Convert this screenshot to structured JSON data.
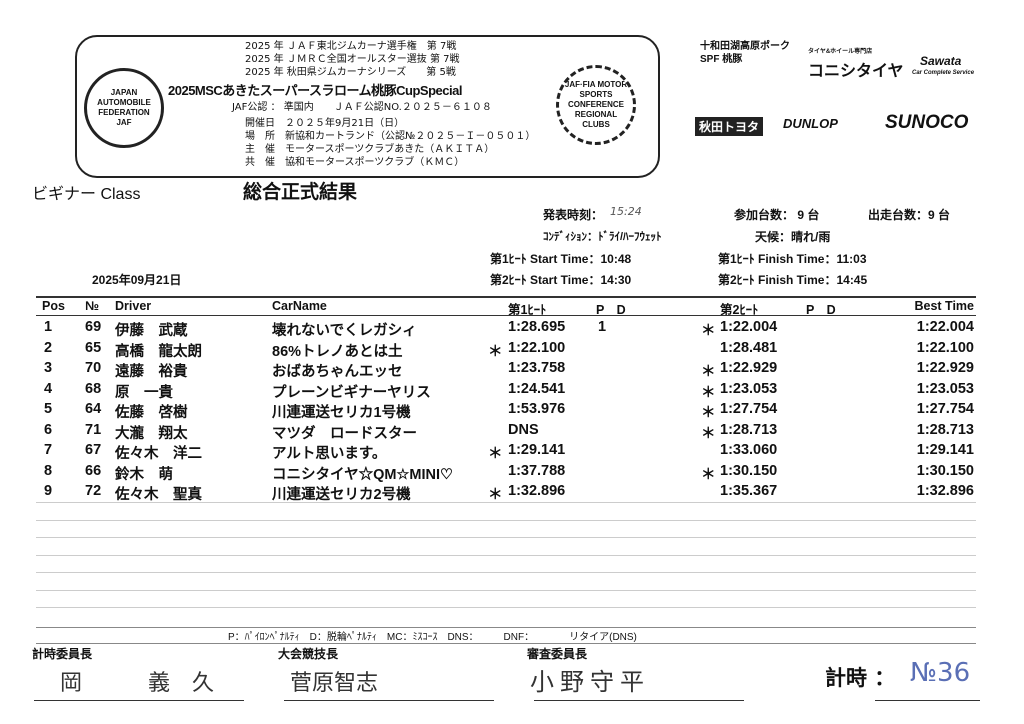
{
  "header": {
    "series": [
      "2025 年 ＪＡＦ東北ジムカーナ選手権　第 7戦",
      "2025 年 ＪＭＲＣ全国オールスター選抜 第 7戦",
      "2025 年 秋田県ジムカーナシリーズ　　第 5戦"
    ],
    "title": "2025MSCあきたスーパースラローム桃豚CupSpecial",
    "jaf": "JAF公認 ： 準国内　　ＪＡＦ公認NO.２０２５－６１０８",
    "info": [
      "開催日　２０２５年9月21日（日）",
      "場　所　新協和カートランド（公認№２０２５－Ｉ－０５０１）",
      "主　催　モータースポーツクラブあきた（ＡＫＩＴＡ）",
      "共　催　協和モータースポーツクラブ（ＫＭＣ）"
    ],
    "left_logo_text": "JAPAN AUTOMOBILE FEDERATION JAF",
    "right_logo_text": "JAF·FIA MOTOR SPORTS CONFERENCE REGIONAL CLUBS"
  },
  "sponsors": {
    "s1": "十和田湖高原ポーク SPF 桃豚",
    "s2_sub": "タイヤ&ホイール専門店",
    "s2": "コニシタイヤ",
    "s3": "Sawata",
    "s3_sub": "Car Complete Service",
    "s4": "秋田トヨタ",
    "s5": "DUNLOP",
    "s6": "SUNOCO"
  },
  "class": "ビギナー Class",
  "result_title": "総合正式結果",
  "meta": {
    "announce_label": "発表時刻：",
    "announce": "15:24",
    "entries": "参加台数： 9 台",
    "starters": "出走台数：9 台",
    "condition": "ｺﾝﾃﾞｨｼｮﾝ：ﾄﾞﾗｲ/ﾊｰﾌｳｪｯﾄ",
    "weather": "天候：晴れ/雨",
    "h1_start": "第1ﾋｰﾄ Start Time：10:48",
    "h1_finish": "第1ﾋｰﾄ Finish Time：11:03",
    "h2_start": "第2ﾋｰﾄ Start Time：14:30",
    "h2_finish": "第2ﾋｰﾄ Finish Time：14:45",
    "date": "2025年09月21日"
  },
  "columns": {
    "pos": "Pos",
    "no": "№",
    "driver": "Driver",
    "car": "CarName",
    "h1": "第1ﾋｰﾄ",
    "pd1": "P　D",
    "h2": "第2ﾋｰﾄ",
    "pd2": "P　D",
    "best": "Best Time"
  },
  "rows": [
    {
      "pos": "1",
      "no": "69",
      "driver": "伊藤　武蔵",
      "car": "壊れないでくレガシィ",
      "m1": "",
      "h1": "1:28.695",
      "pd1": "1",
      "m2": "＊",
      "h2": "1:22.004",
      "best": "1:22.004"
    },
    {
      "pos": "2",
      "no": "65",
      "driver": "高橋　龍太朗",
      "car": "86%トレノあとは土",
      "m1": "＊",
      "h1": "1:22.100",
      "pd1": "",
      "m2": "",
      "h2": "1:28.481",
      "best": "1:22.100"
    },
    {
      "pos": "3",
      "no": "70",
      "driver": "遠藤　裕貴",
      "car": "おばあちゃんエッセ",
      "m1": "",
      "h1": "1:23.758",
      "pd1": "",
      "m2": "＊",
      "h2": "1:22.929",
      "best": "1:22.929"
    },
    {
      "pos": "4",
      "no": "68",
      "driver": "原　一貴",
      "car": "プレーンビギナーヤリス",
      "m1": "",
      "h1": "1:24.541",
      "pd1": "",
      "m2": "＊",
      "h2": "1:23.053",
      "best": "1:23.053"
    },
    {
      "pos": "5",
      "no": "64",
      "driver": "佐藤　啓樹",
      "car": "川連運送セリカ1号機",
      "m1": "",
      "h1": "1:53.976",
      "pd1": "",
      "m2": "＊",
      "h2": "1:27.754",
      "best": "1:27.754"
    },
    {
      "pos": "6",
      "no": "71",
      "driver": "大瀧　翔太",
      "car": "マツダ　ロードスター",
      "m1": "",
      "h1": "DNS",
      "pd1": "",
      "m2": "＊",
      "h2": "1:28.713",
      "best": "1:28.713"
    },
    {
      "pos": "7",
      "no": "67",
      "driver": "佐々木　洋二",
      "car": "アルト思います。",
      "m1": "＊",
      "h1": "1:29.141",
      "pd1": "",
      "m2": "",
      "h2": "1:33.060",
      "best": "1:29.141"
    },
    {
      "pos": "8",
      "no": "66",
      "driver": "鈴木　萌",
      "car": "コニシタイヤ☆QM☆MINI♡",
      "m1": "",
      "h1": "1:37.788",
      "pd1": "",
      "m2": "＊",
      "h2": "1:30.150",
      "best": "1:30.150"
    },
    {
      "pos": "9",
      "no": "72",
      "driver": "佐々木　聖真",
      "car": "川連運送セリカ2号機",
      "m1": "＊",
      "h1": "1:32.896",
      "pd1": "",
      "m2": "",
      "h2": "1:35.367",
      "best": "1:32.896"
    }
  ],
  "legend": "P：ﾊﾟｲﾛﾝﾍﾟﾅﾙﾃｨ　D：脱輪ﾍﾟﾅﾙﾃｨ　MC：ﾐｽｺｰｽ　DNS：　　　DNF：　　　　リタイア(DNS)",
  "signatures": [
    {
      "role": "計時委員長",
      "name": "岡　義久"
    },
    {
      "role": "大会競技長",
      "name": "菅原智志"
    },
    {
      "role": "審査委員長",
      "name": "小野守平"
    }
  ],
  "timing_label": "計時 ：",
  "timing_no": "№36",
  "colors": {
    "stamp": "#5a6fb5"
  }
}
